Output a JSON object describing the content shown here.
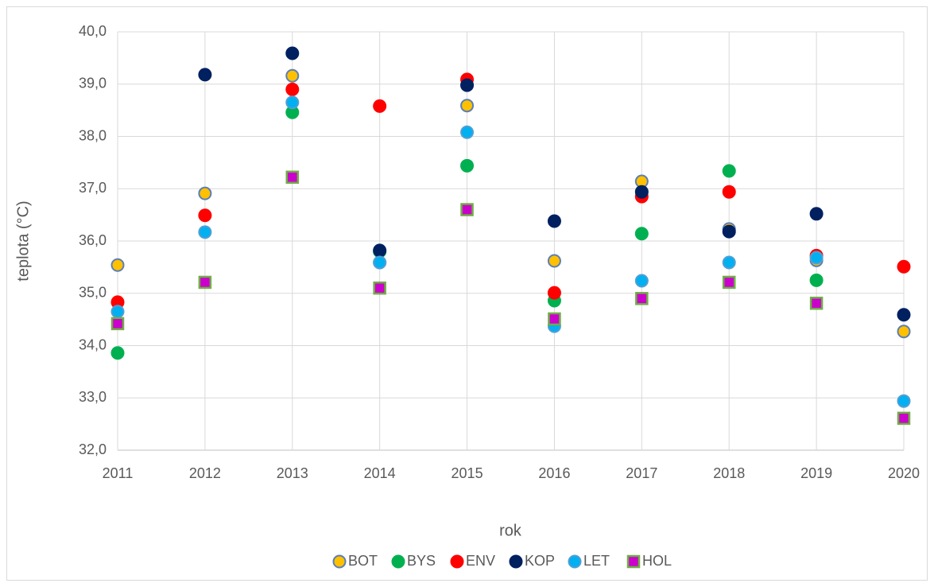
{
  "chart_data": {
    "type": "scatter",
    "y_label": "teplota (°C)",
    "x_label": "rok",
    "categories": [
      "2011",
      "2012",
      "2013",
      "2014",
      "2015",
      "2016",
      "2017",
      "2018",
      "2019",
      "2020"
    ],
    "ylim": [
      32,
      40
    ],
    "yticks": [
      {
        "value": 32,
        "label": "32,0"
      },
      {
        "value": 33,
        "label": "33,0"
      },
      {
        "value": 34,
        "label": "34,0"
      },
      {
        "value": 35,
        "label": "35,0"
      },
      {
        "value": 36,
        "label": "36,0"
      },
      {
        "value": 37,
        "label": "37,0"
      },
      {
        "value": 38,
        "label": "38,0"
      },
      {
        "value": 39,
        "label": "39,0"
      },
      {
        "value": 40,
        "label": "40,0"
      }
    ],
    "grid": true,
    "legend": "bottom",
    "series": [
      {
        "name": "BOT",
        "color": "#ffc000",
        "edge": "#5b7fb5",
        "marker": "circle",
        "values": [
          35.54,
          36.91,
          39.16,
          35.59,
          38.59,
          35.62,
          37.14,
          36.23,
          35.63,
          34.27
        ]
      },
      {
        "name": "BYS",
        "color": "#00b050",
        "edge": "#00b050",
        "marker": "circle",
        "values": [
          33.86,
          null,
          38.46,
          35.8,
          37.44,
          34.86,
          36.14,
          37.34,
          35.25,
          null
        ]
      },
      {
        "name": "ENV",
        "color": "#ff0000",
        "edge": "#ff0000",
        "marker": "circle",
        "values": [
          34.83,
          36.49,
          38.9,
          38.58,
          39.09,
          35.01,
          36.85,
          36.94,
          35.72,
          35.51
        ]
      },
      {
        "name": "KOP",
        "color": "#002060",
        "edge": "#002060",
        "marker": "circle",
        "values": [
          null,
          39.18,
          39.59,
          35.82,
          38.98,
          36.38,
          36.94,
          36.18,
          36.52,
          34.59
        ]
      },
      {
        "name": "LET",
        "color": "#00b0f0",
        "edge": "#4f9fd6",
        "marker": "circle",
        "values": [
          34.65,
          36.17,
          38.65,
          35.59,
          38.08,
          34.37,
          35.24,
          35.59,
          35.68,
          32.94
        ]
      },
      {
        "name": "HOL",
        "color": "#cc00cc",
        "edge": "#70ad47",
        "marker": "square",
        "values": [
          34.42,
          35.21,
          37.22,
          35.1,
          36.6,
          34.51,
          34.9,
          35.21,
          34.81,
          32.61
        ]
      }
    ]
  }
}
